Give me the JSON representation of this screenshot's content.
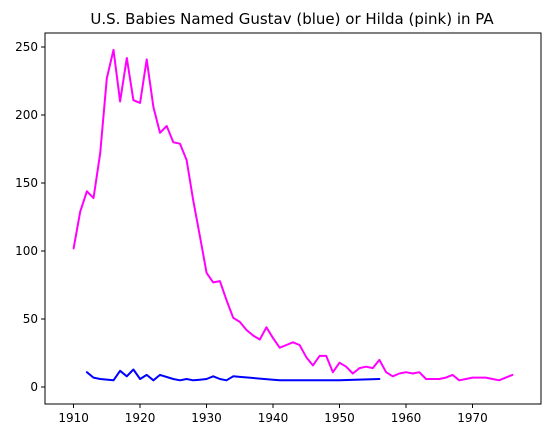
{
  "chart_data": {
    "type": "line",
    "title": "U.S. Babies Named Gustav (blue) or Hilda (pink) in PA",
    "xlabel": "",
    "ylabel": "",
    "xlim": [
      1905.7,
      1980.3
    ],
    "ylim": [
      -12.4,
      260.4
    ],
    "xticks": [
      1910,
      1920,
      1930,
      1940,
      1950,
      1960,
      1970
    ],
    "yticks": [
      0,
      50,
      100,
      150,
      200,
      250
    ],
    "grid": false,
    "series": [
      {
        "color": "#0000ff",
        "x": [
          1912,
          1913,
          1914,
          1916,
          1917,
          1918,
          1919,
          1920,
          1921,
          1922,
          1923,
          1925,
          1926,
          1927,
          1928,
          1929,
          1930,
          1931,
          1932,
          1933,
          1934,
          1935,
          1940,
          1941,
          1945,
          1950,
          1956
        ],
        "y": [
          11,
          7,
          6,
          5,
          12,
          8,
          13,
          6,
          9,
          5,
          9,
          6,
          5,
          6,
          5,
          5.5,
          6,
          8,
          6,
          5,
          8,
          7.5,
          5.5,
          5,
          5,
          5,
          6
        ]
      },
      {
        "color": "#ff00ff",
        "x": [
          1910,
          1911,
          1912,
          1913,
          1914,
          1915,
          1916,
          1917,
          1918,
          1919,
          1920,
          1921,
          1922,
          1923,
          1924,
          1925,
          1926,
          1927,
          1928,
          1929,
          1930,
          1931,
          1932,
          1933,
          1934,
          1935,
          1936,
          1937,
          1938,
          1939,
          1940,
          1941,
          1942,
          1943,
          1944,
          1945,
          1946,
          1947,
          1948,
          1949,
          1950,
          1951,
          1952,
          1953,
          1954,
          1955,
          1956,
          1957,
          1958,
          1959,
          1960,
          1961,
          1962,
          1963,
          1964,
          1965,
          1966,
          1967,
          1968,
          1969,
          1970,
          1971,
          1972,
          1973,
          1974,
          1975,
          1976
        ],
        "y": [
          102,
          129,
          144,
          139,
          172,
          227,
          248,
          210,
          242,
          211,
          209,
          241,
          206,
          187,
          192,
          180,
          179,
          167,
          137,
          111,
          84,
          77,
          78,
          64,
          51,
          48,
          42,
          38,
          35,
          44,
          36,
          29,
          31,
          33,
          31,
          22,
          16,
          23,
          23,
          11,
          18,
          15,
          10,
          14,
          15,
          14,
          20,
          11,
          8,
          10,
          11,
          10,
          11,
          6,
          6,
          6,
          7,
          9,
          5,
          6,
          7,
          7,
          7,
          6,
          5,
          7,
          9
        ]
      }
    ]
  }
}
